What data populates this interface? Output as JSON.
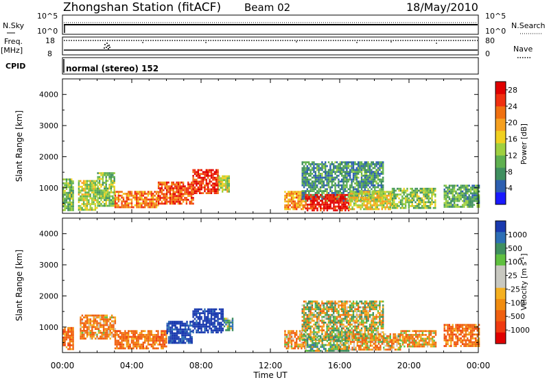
{
  "header": {
    "station": "Zhongshan Station (fitACF)",
    "beam": "Beam 02",
    "date": "18/May/2010"
  },
  "noise_panel": {
    "left_label": "N.Sky",
    "right_label": "N.Search",
    "left_ticks": [
      "10^5",
      "10^0"
    ],
    "right_ticks": [
      "10^5",
      "10^0"
    ]
  },
  "freq_panel": {
    "left_label_line1": "Freq.",
    "left_label_line2": "[MHz]",
    "left_ticks": [
      "18",
      "8"
    ],
    "right_label": "Nave",
    "right_ticks": [
      "80",
      "0"
    ]
  },
  "cpid_panel": {
    "label": "CPID",
    "mode": "normal (stereo) 152"
  },
  "colors": {
    "power": [
      "#1a1aff",
      "#2d5fb0",
      "#3f8f5f",
      "#5fb050",
      "#9fd040",
      "#f0d020",
      "#f5a020",
      "#f07010",
      "#f03010",
      "#e00000"
    ],
    "velocity": [
      "#e00000",
      "#f03a10",
      "#f06010",
      "#f08c10",
      "#f5b020",
      "#c8c8c0",
      "#c8c8c0",
      "#60c040",
      "#3f8f5f",
      "#2d6fb5",
      "#1a3aaf"
    ]
  },
  "chart_data": [
    {
      "type": "heatmap",
      "name": "power",
      "ylabel": "Slant Range [km]",
      "xlim": [
        0,
        24
      ],
      "ylim": [
        180,
        4500
      ],
      "yticks": [
        1000,
        2000,
        3000,
        4000
      ],
      "x_ticks": [
        0,
        4,
        8,
        12,
        16,
        20,
        24
      ],
      "colorbar": {
        "label": "Power [dB]",
        "min": 0,
        "max": 30,
        "ticks": [
          "4",
          "8",
          "12",
          "16",
          "20",
          "24",
          "28"
        ]
      },
      "regions": [
        {
          "t0": 0.0,
          "t1": 0.6,
          "r0": 300,
          "r1": 1300,
          "level": 12
        },
        {
          "t0": 0.9,
          "t1": 2.0,
          "r0": 300,
          "r1": 1250,
          "level": 14
        },
        {
          "t0": 2.0,
          "t1": 3.0,
          "r0": 400,
          "r1": 1500,
          "level": 12
        },
        {
          "t0": 3.0,
          "t1": 5.5,
          "r0": 350,
          "r1": 900,
          "level": 22
        },
        {
          "t0": 5.5,
          "t1": 7.5,
          "r0": 500,
          "r1": 1200,
          "level": 24
        },
        {
          "t0": 7.5,
          "t1": 9.0,
          "r0": 800,
          "r1": 1600,
          "level": 26
        },
        {
          "t0": 9.0,
          "t1": 9.6,
          "r0": 900,
          "r1": 1400,
          "level": 14
        },
        {
          "t0": 12.8,
          "t1": 14.0,
          "r0": 300,
          "r1": 900,
          "level": 20
        },
        {
          "t0": 13.8,
          "t1": 18.5,
          "r0": 600,
          "r1": 1850,
          "level": 8
        },
        {
          "t0": 14.0,
          "t1": 16.5,
          "r0": 250,
          "r1": 800,
          "level": 28
        },
        {
          "t0": 16.5,
          "t1": 19.0,
          "r0": 300,
          "r1": 900,
          "level": 16
        },
        {
          "t0": 19.0,
          "t1": 21.5,
          "r0": 350,
          "r1": 1000,
          "level": 12
        },
        {
          "t0": 22.0,
          "t1": 24.0,
          "r0": 400,
          "r1": 1100,
          "level": 10
        }
      ]
    },
    {
      "type": "heatmap",
      "name": "velocity",
      "ylabel": "Slant Range [km]",
      "xlabel": "Time UT",
      "xlim": [
        0,
        24
      ],
      "ylim": [
        180,
        4500
      ],
      "yticks": [
        1000,
        2000,
        3000,
        4000
      ],
      "x_ticks": [
        0,
        4,
        8,
        12,
        16,
        20,
        24
      ],
      "x_tick_labels": [
        "00:00",
        "04:00",
        "08:00",
        "12:00",
        "16:00",
        "20:00",
        "00:00"
      ],
      "colorbar": {
        "label": "Velocity [m s-1]",
        "ticks": [
          "1000",
          "500",
          "100",
          "25",
          "-25",
          "-100",
          "-500",
          "-1000"
        ]
      },
      "regions": [
        {
          "t0": 0.0,
          "t1": 0.6,
          "r0": 300,
          "r1": 1000,
          "vel": -300
        },
        {
          "t0": 1.0,
          "t1": 3.0,
          "r0": 600,
          "r1": 1400,
          "vel": -200
        },
        {
          "t0": 3.0,
          "t1": 6.0,
          "r0": 300,
          "r1": 900,
          "vel": -300
        },
        {
          "t0": 6.0,
          "t1": 7.5,
          "r0": 500,
          "r1": 1200,
          "vel": 700
        },
        {
          "t0": 7.5,
          "t1": 9.3,
          "r0": 800,
          "r1": 1600,
          "vel": 800
        },
        {
          "t0": 9.3,
          "t1": 9.8,
          "r0": 900,
          "r1": 1300,
          "vel": 200
        },
        {
          "t0": 12.8,
          "t1": 14.0,
          "r0": 300,
          "r1": 900,
          "vel": -200
        },
        {
          "t0": 13.8,
          "t1": 18.5,
          "r0": 600,
          "r1": 1850,
          "vel": 0
        },
        {
          "t0": 14.0,
          "t1": 16.5,
          "r0": 250,
          "r1": 700,
          "vel": 80
        },
        {
          "t0": 16.5,
          "t1": 19.5,
          "r0": 300,
          "r1": 800,
          "vel": -120
        },
        {
          "t0": 19.5,
          "t1": 21.5,
          "r0": 350,
          "r1": 900,
          "vel": -150
        },
        {
          "t0": 22.0,
          "t1": 24.0,
          "r0": 400,
          "r1": 1100,
          "vel": -300
        }
      ]
    }
  ]
}
